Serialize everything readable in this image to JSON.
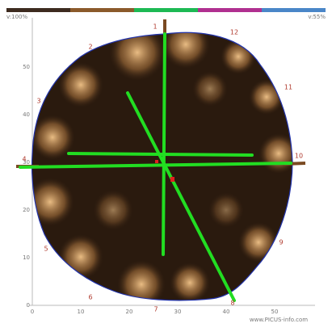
{
  "header": {
    "left_label": "v:100%",
    "right_label": "v:55%"
  },
  "sensors": [
    "1",
    "2",
    "3",
    "4",
    "5",
    "6",
    "7",
    "8",
    "9",
    "10",
    "11",
    "12"
  ],
  "axes": {
    "xticks": [
      0,
      10,
      20,
      30,
      40,
      50
    ],
    "yticks": [
      0,
      10,
      20,
      30,
      40,
      50
    ]
  },
  "footer": "www.PICUS-info.com"
}
